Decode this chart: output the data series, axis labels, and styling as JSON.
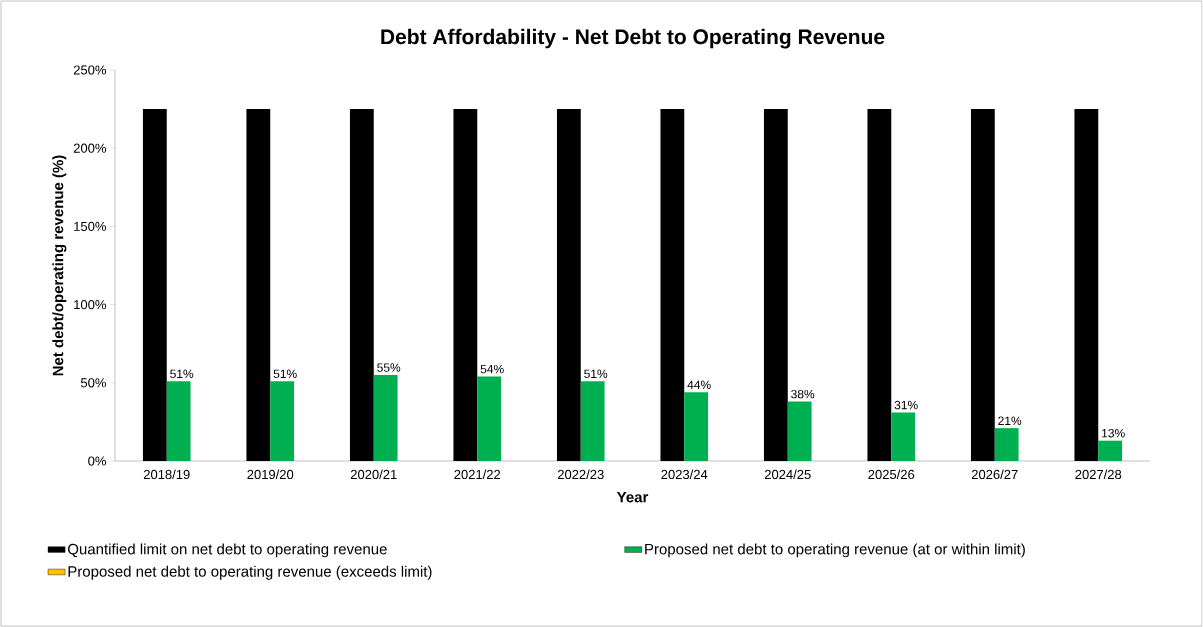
{
  "chart_data": {
    "type": "bar",
    "title": "Debt  Affordability - Net Debt to Operating Revenue",
    "xlabel": "Year",
    "ylabel": "Net debt/operating revenue (%)",
    "categories": [
      "2018/19",
      "2019/20",
      "2020/21",
      "2021/22",
      "2022/23",
      "2023/24",
      "2024/25",
      "2025/26",
      "2026/27",
      "2027/28"
    ],
    "series": [
      {
        "name": "Quantified limit on net debt to operating revenue",
        "color": "#000000",
        "values": [
          225,
          225,
          225,
          225,
          225,
          225,
          225,
          225,
          225,
          225
        ]
      },
      {
        "name": "Proposed net debt to operating revenue (at or within limit)",
        "color": "#00b050",
        "values": [
          51,
          51,
          55,
          54,
          51,
          44,
          38,
          31,
          21,
          13
        ],
        "value_labels": [
          "51%",
          "51%",
          "55%",
          "54%",
          "51%",
          "44%",
          "38%",
          "31%",
          "21%",
          "13%"
        ]
      },
      {
        "name": "Proposed net debt to operating revenue (exceeds limit)",
        "color": "#ffc000",
        "values": [
          null,
          null,
          null,
          null,
          null,
          null,
          null,
          null,
          null,
          null
        ]
      }
    ],
    "ylim": [
      0,
      250
    ],
    "yticks": [
      {
        "value": 0,
        "label": "0%"
      },
      {
        "value": 50,
        "label": "50%"
      },
      {
        "value": 100,
        "label": "100%"
      },
      {
        "value": 150,
        "label": "150%"
      },
      {
        "value": 200,
        "label": "200%"
      },
      {
        "value": 250,
        "label": "250%"
      }
    ],
    "grid": false,
    "legend": "bottom"
  }
}
